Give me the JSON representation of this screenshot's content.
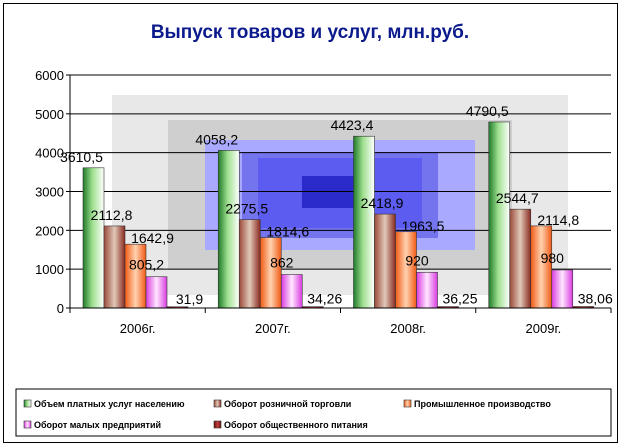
{
  "chart_data": {
    "type": "bar",
    "title": "Выпуск товаров и услуг, млн.руб.",
    "categories": [
      "2006г.",
      "2007г.",
      "2008г.",
      "2009г."
    ],
    "ylim": [
      0,
      6000
    ],
    "yticks": [
      "0",
      "1000",
      "2000",
      "3000",
      "4000",
      "5000",
      "6000"
    ],
    "grid": true,
    "legend_position": "bottom",
    "series": [
      {
        "name": "Объем платных услуг населению",
        "values": [
          3610.5,
          4058.2,
          4423.4,
          4790.5
        ],
        "labels": [
          "3610,5",
          "4058,2",
          "4423,4",
          "4790,5"
        ],
        "color": "#2e9a3c"
      },
      {
        "name": "Оборот розничной торговли",
        "values": [
          2112.8,
          2275.5,
          2418.9,
          2544.7
        ],
        "labels": [
          "2112,8",
          "2275,5",
          "2418,9",
          "2544,7"
        ],
        "color": "#8b2a22"
      },
      {
        "name": "Промышленное производство",
        "values": [
          1642.9,
          1814.6,
          1963.5,
          2114.8
        ],
        "labels": [
          "1642,9",
          "1814,6",
          "1963,5",
          "2114,8"
        ],
        "color": "#f26b1d"
      },
      {
        "name": "Оборот малых предприятий",
        "values": [
          805.2,
          862,
          920,
          980
        ],
        "labels": [
          "805,2",
          "862",
          "920",
          "980"
        ],
        "color": "#e04be6"
      },
      {
        "name": "Оборот общественного питания",
        "values": [
          31.9,
          34.26,
          36.25,
          38.06
        ],
        "labels": [
          "31,9",
          "34,26",
          "36,25",
          "38,06"
        ],
        "color": "#7a1010"
      }
    ]
  }
}
